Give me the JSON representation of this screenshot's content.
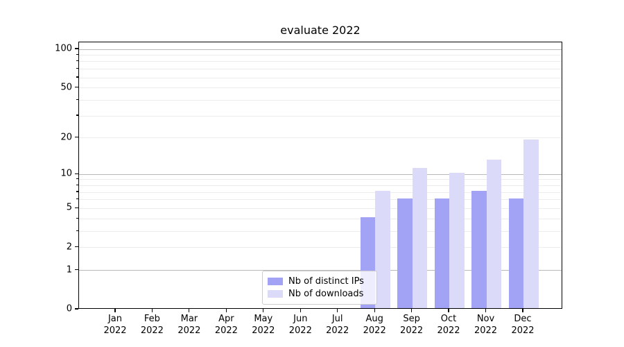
{
  "chart_data": {
    "type": "bar",
    "title": "evaluate 2022",
    "categories": [
      "Jan",
      "Feb",
      "Mar",
      "Apr",
      "May",
      "Jun",
      "Jul",
      "Aug",
      "Sep",
      "Oct",
      "Nov",
      "Dec"
    ],
    "x_year": "2022",
    "series": [
      {
        "name": "Nb of distinct IPs",
        "color": "#a3a3f6",
        "values": [
          0,
          0,
          0,
          0,
          0,
          0,
          0,
          4,
          6,
          6,
          7,
          6
        ]
      },
      {
        "name": "Nb of downloads",
        "color": "#dbdbf9",
        "values": [
          0,
          0,
          0,
          0,
          0,
          0,
          0,
          7,
          11,
          10,
          13,
          19
        ]
      }
    ],
    "yscale": "log1p",
    "ylim": [
      0,
      100
    ],
    "y_major_ticks": [
      0,
      1,
      2,
      5,
      10,
      20,
      50,
      100
    ],
    "y_minor_ticks": [
      3,
      4,
      6,
      7,
      8,
      9,
      30,
      40,
      60,
      70,
      80,
      90
    ],
    "grid_emphasis_values": [
      1,
      10,
      100
    ],
    "grid_on": true,
    "legend_position": "lower center",
    "colors": {
      "grid_major": "#b9b9b9",
      "grid_minor": "#ececec",
      "spine": "#000000",
      "text": "#000000"
    }
  }
}
